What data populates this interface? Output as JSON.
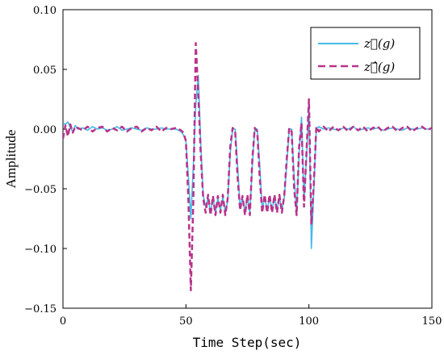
{
  "chart_data": {
    "type": "line",
    "xlabel": "Time Step(sec)",
    "ylabel": "Amplitude",
    "xlim": [
      0,
      150
    ],
    "ylim": [
      -0.15,
      0.1
    ],
    "xticks": [
      0,
      50,
      100,
      150
    ],
    "xtick_labels": [
      "0",
      "50",
      "100",
      "150"
    ],
    "yticks": [
      0.1,
      0.05,
      0.0,
      -0.05,
      -0.1,
      -0.15
    ],
    "ytick_labels": [
      "0.10",
      "0.05",
      "0.00",
      "−0.05",
      "−0.10",
      "−0.15"
    ],
    "grid": false,
    "legend_position": "top-right",
    "series": [
      {
        "name": "z⃗(g)",
        "color": "#45b9e8",
        "style": "solid",
        "x": [
          0,
          1,
          2,
          3,
          4,
          5,
          6,
          8,
          10,
          12,
          14,
          16,
          18,
          20,
          22,
          24,
          26,
          28,
          30,
          32,
          34,
          36,
          38,
          40,
          42,
          44,
          46,
          48,
          49,
          50,
          51,
          52,
          53,
          54,
          55,
          56,
          57,
          58,
          59,
          60,
          61,
          62,
          63,
          64,
          65,
          66,
          67,
          68,
          69,
          70,
          71,
          72,
          73,
          74,
          75,
          76,
          77,
          78,
          79,
          80,
          81,
          82,
          83,
          84,
          85,
          86,
          87,
          88,
          89,
          90,
          91,
          92,
          93,
          94,
          95,
          96,
          97,
          98,
          99,
          100,
          101,
          102,
          103,
          104,
          106,
          108,
          110,
          112,
          114,
          116,
          118,
          120,
          122,
          124,
          126,
          128,
          130,
          132,
          134,
          136,
          138,
          140,
          142,
          144,
          146,
          148,
          150
        ],
        "y": [
          0.005,
          0.004,
          0.006,
          0.001,
          -0.002,
          0.003,
          0.0,
          0.001,
          -0.001,
          0.002,
          0.0,
          0.001,
          -0.001,
          0.0,
          0.002,
          -0.001,
          0.0,
          0.001,
          0.0,
          -0.001,
          0.001,
          0.0,
          0.0,
          0.001,
          0.0,
          0.0,
          0.0,
          -0.002,
          -0.005,
          -0.01,
          -0.04,
          -0.075,
          -0.03,
          0.02,
          0.045,
          -0.01,
          -0.055,
          -0.065,
          -0.058,
          -0.07,
          -0.057,
          -0.07,
          -0.058,
          -0.068,
          -0.057,
          -0.07,
          -0.06,
          -0.02,
          0.0,
          0.0,
          -0.03,
          -0.065,
          -0.058,
          -0.07,
          -0.056,
          -0.07,
          -0.03,
          0.0,
          0.0,
          -0.03,
          -0.067,
          -0.057,
          -0.068,
          -0.057,
          -0.068,
          -0.057,
          -0.068,
          -0.057,
          -0.068,
          -0.057,
          -0.03,
          0.0,
          0.0,
          -0.04,
          -0.07,
          -0.02,
          0.01,
          -0.06,
          -0.025,
          0.02,
          -0.1,
          -0.05,
          0.0,
          0.002,
          0.0,
          0.001,
          0.0,
          -0.001,
          0.001,
          0.0,
          0.002,
          -0.001,
          0.0,
          0.001,
          0.0,
          0.001,
          -0.001,
          0.0,
          0.001,
          0.0,
          -0.001,
          0.001,
          0.0,
          0.0,
          0.001,
          0.0,
          0.0
        ]
      },
      {
        "name": "z⃗̂(g)",
        "color": "#b8338a",
        "style": "dashed",
        "x": [
          0,
          1,
          2,
          3,
          4,
          5,
          6,
          8,
          10,
          12,
          14,
          16,
          18,
          20,
          22,
          24,
          26,
          28,
          30,
          32,
          34,
          36,
          38,
          40,
          42,
          44,
          46,
          48,
          49,
          50,
          51,
          52,
          53,
          54,
          55,
          56,
          57,
          58,
          59,
          60,
          61,
          62,
          63,
          64,
          65,
          66,
          67,
          68,
          69,
          70,
          71,
          72,
          73,
          74,
          75,
          76,
          77,
          78,
          79,
          80,
          81,
          82,
          83,
          84,
          85,
          86,
          87,
          88,
          89,
          90,
          91,
          92,
          93,
          94,
          95,
          96,
          97,
          98,
          99,
          100,
          101,
          102,
          103,
          104,
          106,
          108,
          110,
          112,
          114,
          116,
          118,
          120,
          122,
          124,
          126,
          128,
          130,
          132,
          134,
          136,
          138,
          140,
          142,
          144,
          146,
          148,
          150
        ],
        "y": [
          -0.008,
          0.003,
          -0.006,
          0.004,
          -0.003,
          0.002,
          0.001,
          -0.001,
          0.002,
          -0.002,
          0.001,
          0.002,
          -0.002,
          0.001,
          -0.001,
          0.002,
          -0.002,
          0.001,
          0.002,
          -0.002,
          0.001,
          -0.001,
          0.002,
          -0.002,
          0.001,
          0.0,
          0.001,
          -0.001,
          -0.003,
          -0.01,
          -0.06,
          -0.135,
          -0.06,
          0.072,
          0.03,
          -0.02,
          -0.058,
          -0.07,
          -0.055,
          -0.072,
          -0.056,
          -0.072,
          -0.056,
          -0.07,
          -0.055,
          -0.072,
          -0.058,
          -0.015,
          0.001,
          -0.002,
          -0.04,
          -0.068,
          -0.056,
          -0.072,
          -0.055,
          -0.072,
          -0.025,
          0.001,
          -0.002,
          -0.04,
          -0.07,
          -0.055,
          -0.07,
          -0.055,
          -0.07,
          -0.055,
          -0.07,
          -0.055,
          -0.07,
          -0.055,
          -0.025,
          0.001,
          -0.002,
          -0.05,
          -0.072,
          -0.015,
          0.005,
          -0.065,
          -0.02,
          0.025,
          -0.08,
          -0.045,
          0.002,
          -0.002,
          0.002,
          -0.002,
          0.002,
          -0.001,
          0.002,
          -0.002,
          0.002,
          -0.001,
          0.002,
          -0.002,
          0.001,
          0.002,
          -0.002,
          0.001,
          0.002,
          -0.002,
          0.001,
          0.002,
          -0.002,
          0.001,
          0.002,
          -0.001,
          0.001
        ]
      }
    ]
  }
}
